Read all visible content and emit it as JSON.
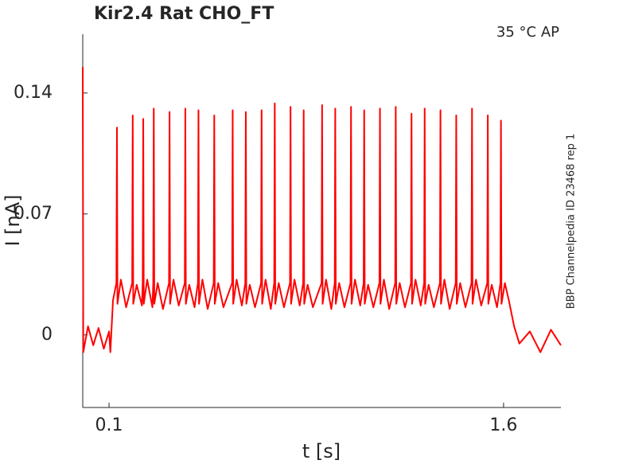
{
  "chart_data": {
    "type": "line",
    "title": "Kir2.4  Rat  CHO_FT",
    "annotations": [
      "35 °C  AP",
      "BBP Channelpedia ID 23468 rep 1"
    ],
    "xlabel": "t [s]",
    "ylabel": "I [nA]",
    "color": "#ff0000",
    "xlim": [
      0,
      1.818
    ],
    "xticks": [
      0.1,
      1.6
    ],
    "ylim": [
      -0.042,
      0.174
    ],
    "yticks": [
      0,
      0.07,
      0.14
    ],
    "x": [
      0,
      0.002,
      0.02,
      0.04,
      0.06,
      0.08,
      0.1,
      0.105,
      0.115,
      0.128,
      0.13,
      0.132,
      0.145,
      0.165,
      0.188,
      0.19,
      0.192,
      0.205,
      0.225,
      0.228,
      0.23,
      0.232,
      0.245,
      0.265,
      0.268,
      0.27,
      0.272,
      0.285,
      0.305,
      0.328,
      0.33,
      0.332,
      0.345,
      0.365,
      0.388,
      0.39,
      0.392,
      0.405,
      0.425,
      0.438,
      0.44,
      0.442,
      0.455,
      0.475,
      0.498,
      0.5,
      0.502,
      0.515,
      0.535,
      0.568,
      0.57,
      0.572,
      0.585,
      0.605,
      0.618,
      0.62,
      0.622,
      0.635,
      0.655,
      0.678,
      0.68,
      0.682,
      0.695,
      0.715,
      0.728,
      0.73,
      0.732,
      0.745,
      0.765,
      0.788,
      0.79,
      0.792,
      0.805,
      0.825,
      0.838,
      0.84,
      0.842,
      0.855,
      0.875,
      0.908,
      0.91,
      0.912,
      0.925,
      0.945,
      0.958,
      0.96,
      0.962,
      0.975,
      0.995,
      1.018,
      1.02,
      1.022,
      1.035,
      1.055,
      1.068,
      1.07,
      1.072,
      1.085,
      1.105,
      1.128,
      1.13,
      1.132,
      1.145,
      1.165,
      1.188,
      1.19,
      1.192,
      1.205,
      1.225,
      1.248,
      1.25,
      1.252,
      1.265,
      1.285,
      1.298,
      1.3,
      1.302,
      1.315,
      1.335,
      1.358,
      1.36,
      1.362,
      1.375,
      1.395,
      1.418,
      1.42,
      1.422,
      1.435,
      1.455,
      1.478,
      1.48,
      1.482,
      1.495,
      1.515,
      1.538,
      1.54,
      1.542,
      1.555,
      1.575,
      1.588,
      1.59,
      1.592,
      1.605,
      1.62,
      1.64,
      1.66,
      1.7,
      1.74,
      1.78,
      1.818
    ],
    "values": [
      0.155,
      -0.01,
      0.005,
      -0.006,
      0.004,
      -0.008,
      0.002,
      -0.01,
      0.02,
      0.03,
      0.12,
      0.018,
      0.032,
      0.016,
      0.03,
      0.127,
      0.018,
      0.029,
      0.017,
      0.03,
      0.125,
      0.018,
      0.032,
      0.016,
      0.03,
      0.131,
      0.018,
      0.03,
      0.015,
      0.03,
      0.129,
      0.018,
      0.032,
      0.017,
      0.03,
      0.131,
      0.018,
      0.029,
      0.016,
      0.03,
      0.13,
      0.018,
      0.032,
      0.015,
      0.03,
      0.127,
      0.018,
      0.03,
      0.016,
      0.03,
      0.13,
      0.018,
      0.032,
      0.017,
      0.03,
      0.129,
      0.018,
      0.029,
      0.016,
      0.03,
      0.13,
      0.018,
      0.032,
      0.015,
      0.03,
      0.134,
      0.018,
      0.03,
      0.016,
      0.03,
      0.132,
      0.018,
      0.032,
      0.017,
      0.03,
      0.13,
      0.018,
      0.029,
      0.016,
      0.03,
      0.133,
      0.018,
      0.032,
      0.015,
      0.03,
      0.131,
      0.018,
      0.03,
      0.016,
      0.03,
      0.132,
      0.018,
      0.032,
      0.017,
      0.03,
      0.13,
      0.018,
      0.029,
      0.016,
      0.03,
      0.131,
      0.018,
      0.032,
      0.015,
      0.03,
      0.132,
      0.018,
      0.03,
      0.016,
      0.03,
      0.128,
      0.018,
      0.032,
      0.017,
      0.03,
      0.131,
      0.018,
      0.029,
      0.016,
      0.03,
      0.13,
      0.018,
      0.032,
      0.015,
      0.03,
      0.127,
      0.018,
      0.03,
      0.016,
      0.03,
      0.131,
      0.018,
      0.032,
      0.017,
      0.03,
      0.127,
      0.018,
      0.029,
      0.016,
      0.03,
      0.124,
      0.018,
      0.03,
      0.02,
      0.005,
      -0.005,
      0.002,
      -0.01,
      0.003,
      -0.006
    ]
  }
}
